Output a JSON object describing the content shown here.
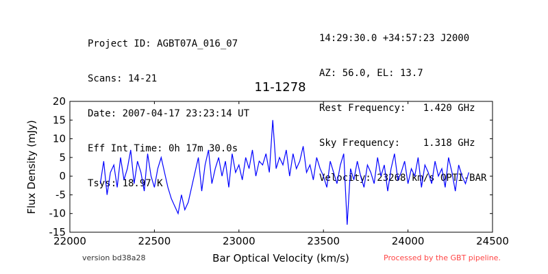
{
  "header": {
    "left": [
      "Project ID: AGBT07A_016_07",
      "Scans: 14-21",
      "Date: 2007-04-17 23:23:14 UT",
      "Eff Int Time: 0h 17m 30.0s",
      "Tsys: 18.97 K"
    ],
    "right": [
      "14:29:30.0 +34:57:23 J2000",
      "AZ: 56.0, EL: 13.7",
      "Rest Frequency:   1.420 GHz",
      "Sky Frequency:    1.318 GHz",
      "Velocity: 23268 km/s OPTI-BAR"
    ]
  },
  "footer": {
    "version": "version bd38a28",
    "pipeline": "Processed by the GBT pipeline."
  },
  "colors": {
    "series": "#0000ff",
    "pipeline_text": "#ff4444",
    "version_text": "#333333"
  },
  "chart_data": {
    "type": "line",
    "title": "11-1278",
    "xlabel": "Bar Optical Velocity (km/s)",
    "ylabel": "Flux Density (mJy)",
    "xlim": [
      22000,
      24500
    ],
    "ylim": [
      -15,
      20
    ],
    "xticks": [
      22000,
      22500,
      23000,
      23500,
      24000,
      24500
    ],
    "yticks": [
      -15,
      -10,
      -5,
      0,
      5,
      10,
      15,
      20
    ],
    "grid": false,
    "series": [
      {
        "x": [
          22180,
          22200,
          22220,
          22240,
          22260,
          22280,
          22300,
          22320,
          22340,
          22360,
          22380,
          22400,
          22420,
          22440,
          22460,
          22480,
          22500,
          22520,
          22540,
          22560,
          22580,
          22600,
          22620,
          22640,
          22660,
          22680,
          22700,
          22720,
          22740,
          22760,
          22780,
          22800,
          22820,
          22840,
          22860,
          22880,
          22900,
          22920,
          22940,
          22960,
          22980,
          23000,
          23020,
          23040,
          23060,
          23080,
          23100,
          23120,
          23140,
          23160,
          23180,
          23200,
          23220,
          23240,
          23260,
          23280,
          23300,
          23320,
          23340,
          23360,
          23380,
          23400,
          23420,
          23440,
          23460,
          23480,
          23500,
          23520,
          23540,
          23560,
          23580,
          23600,
          23620,
          23640,
          23660,
          23680,
          23700,
          23720,
          23740,
          23760,
          23780,
          23800,
          23820,
          23840,
          23860,
          23880,
          23900,
          23920,
          23940,
          23960,
          23980,
          24000,
          24020,
          24040,
          24060,
          24080,
          24100,
          24120,
          24140,
          24160,
          24180,
          24200,
          24220,
          24240,
          24260,
          24280,
          24300,
          24320,
          24340,
          24360
        ],
        "y": [
          -2,
          4,
          -5,
          1,
          3,
          -3,
          5,
          -1,
          2,
          7,
          -2,
          4,
          1,
          -4,
          6,
          0,
          -3,
          2,
          5,
          1,
          -3,
          -6,
          -8,
          -10,
          -5,
          -9,
          -7,
          -3,
          1,
          5,
          -4,
          3,
          7,
          -2,
          2,
          5,
          0,
          4,
          -3,
          6,
          1,
          3,
          -1,
          5,
          2,
          7,
          0,
          4,
          3,
          6,
          1,
          15,
          2,
          5,
          3,
          7,
          0,
          6,
          2,
          4,
          8,
          1,
          3,
          -1,
          5,
          2,
          0,
          -3,
          4,
          1,
          -2,
          3,
          6,
          -13,
          2,
          -1,
          4,
          0,
          -3,
          3,
          1,
          -2,
          5,
          0,
          3,
          -4,
          2,
          6,
          -1,
          1,
          4,
          -2,
          2,
          0,
          5,
          -3,
          3,
          1,
          -2,
          4,
          0,
          2,
          -3,
          5,
          1,
          -4,
          3,
          0,
          -2,
          1
        ]
      }
    ]
  }
}
